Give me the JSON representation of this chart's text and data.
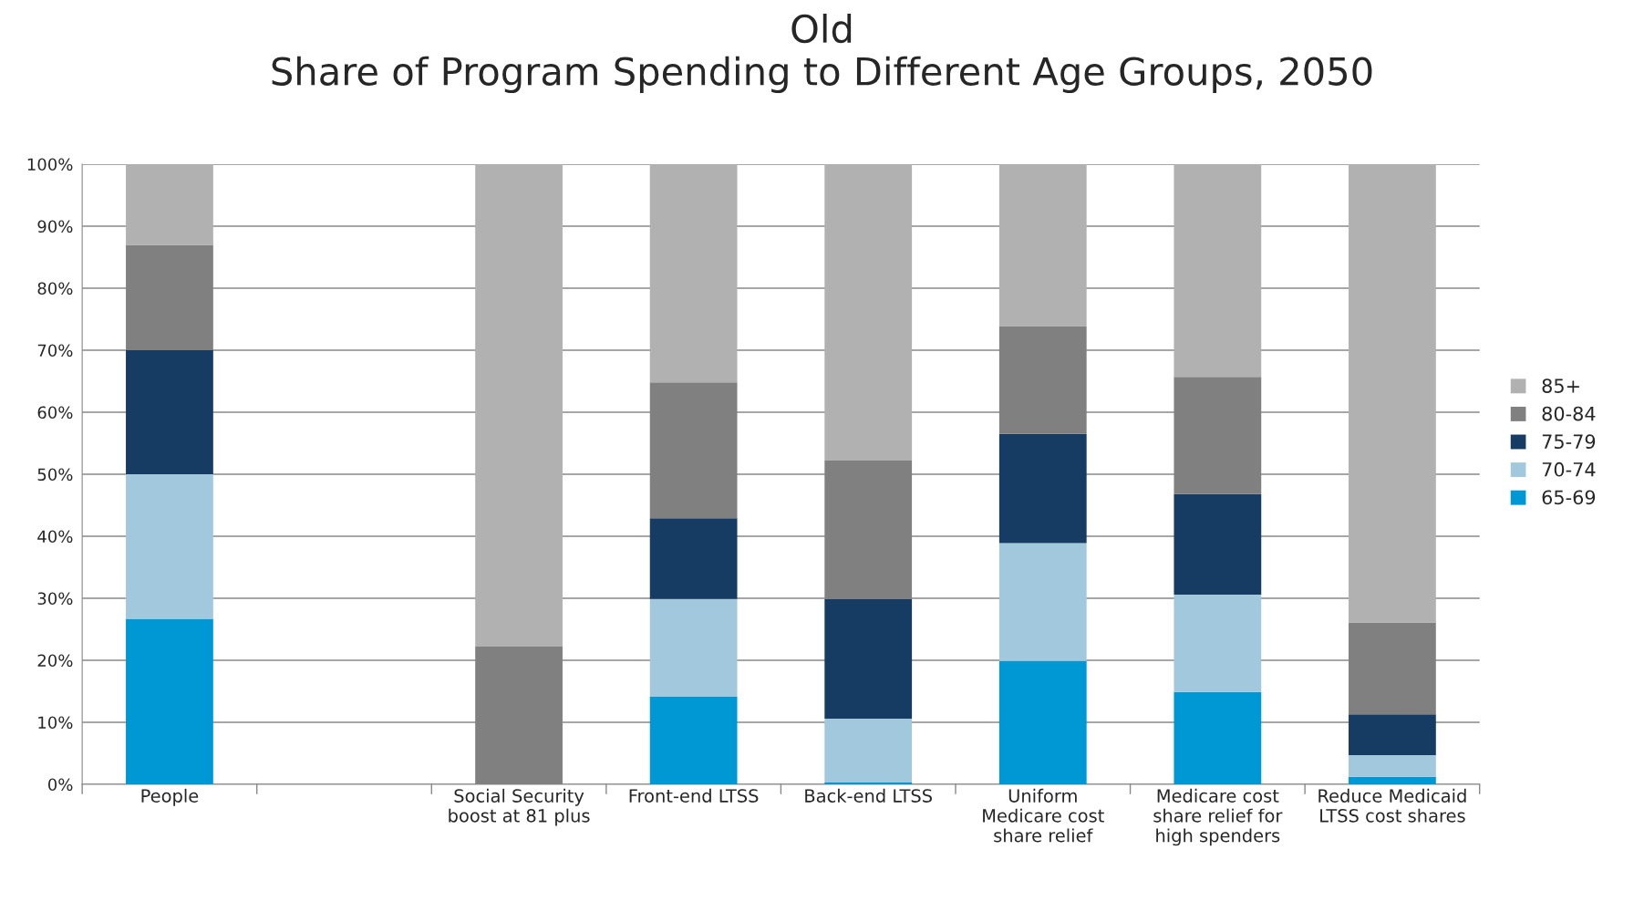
{
  "chart_data": {
    "type": "bar",
    "stacked": true,
    "title": "Old\nShare of Program Spending to Different Age Groups, 2050",
    "categories": [
      "People",
      null,
      "Social Security\nboost at 81 plus",
      "Front-end LTSS",
      "Back-end LTSS",
      "Uniform\nMedicare cost\nshare relief",
      "Medicare cost\nshare relief for\nhigh spenders",
      "Reduce Medicaid\nLTSS cost shares"
    ],
    "series": [
      {
        "name": "65-69",
        "color": "#0098d4",
        "values": [
          26.7,
          null,
          null,
          14.1,
          0.3,
          19.9,
          14.9,
          1.2
        ]
      },
      {
        "name": "70-74",
        "color": "#a2c8de",
        "values": [
          23.3,
          null,
          null,
          15.8,
          10.3,
          19,
          15.7,
          3.5
        ]
      },
      {
        "name": "75-79",
        "color": "#173c63",
        "values": [
          20,
          null,
          null,
          13,
          19.3,
          17.6,
          16.2,
          6.6
        ]
      },
      {
        "name": "80-84",
        "color": "#808080",
        "values": [
          17,
          null,
          22.2,
          21.9,
          22.3,
          17.4,
          18.9,
          14.8
        ]
      },
      {
        "name": "85+",
        "color": "#b0b1b0",
        "values": [
          13,
          null,
          77.8,
          35.2,
          47.8,
          26.1,
          34.3,
          73.9
        ]
      }
    ],
    "ylim": [
      0,
      100
    ],
    "yticks": [
      {
        "value": 0,
        "label": "0%"
      },
      {
        "value": 10,
        "label": "10%"
      },
      {
        "value": 20,
        "label": "20%"
      },
      {
        "value": 30,
        "label": "30%"
      },
      {
        "value": 40,
        "label": "40%"
      },
      {
        "value": 50,
        "label": "50%"
      },
      {
        "value": 60,
        "label": "60%"
      },
      {
        "value": 70,
        "label": "70%"
      },
      {
        "value": 80,
        "label": "80%"
      },
      {
        "value": 90,
        "label": "90%"
      },
      {
        "value": 100,
        "label": "100%"
      }
    ],
    "grid": "y",
    "legend": "right"
  }
}
